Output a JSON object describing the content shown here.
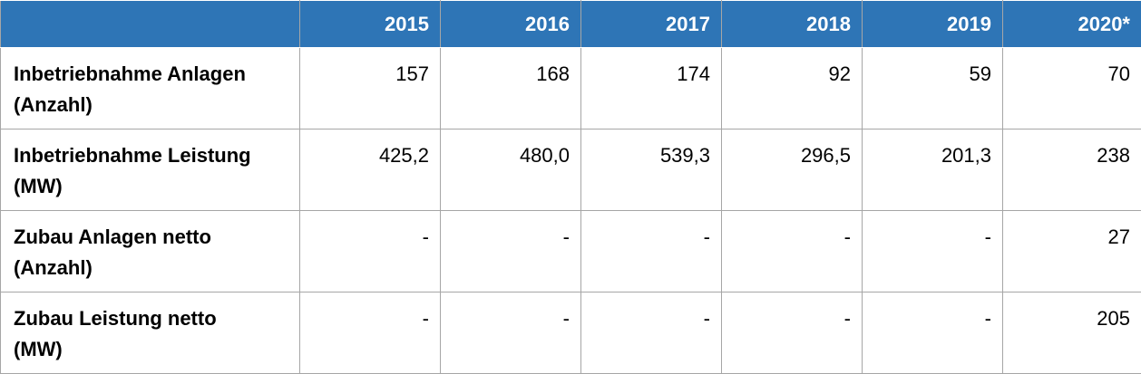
{
  "table": {
    "header": [
      "",
      "2015",
      "2016",
      "2017",
      "2018",
      "2019",
      "2020*"
    ],
    "rows": [
      {
        "label": [
          "Inbetriebnahme Anlagen",
          "(Anzahl)"
        ],
        "cells": [
          "157",
          "168",
          "174",
          "92",
          "59",
          "70"
        ]
      },
      {
        "label": [
          "Inbetriebnahme Leistung",
          "(MW)"
        ],
        "cells": [
          "425,2",
          "480,0",
          "539,3",
          "296,5",
          "201,3",
          "238"
        ]
      },
      {
        "label": [
          "Zubau Anlagen netto",
          "(Anzahl)"
        ],
        "cells": [
          "-",
          "-",
          "-",
          "-",
          "-",
          "27"
        ]
      },
      {
        "label": [
          "Zubau Leistung netto",
          "(MW)"
        ],
        "cells": [
          "-",
          "-",
          "-",
          "-",
          "-",
          "205"
        ]
      }
    ]
  }
}
